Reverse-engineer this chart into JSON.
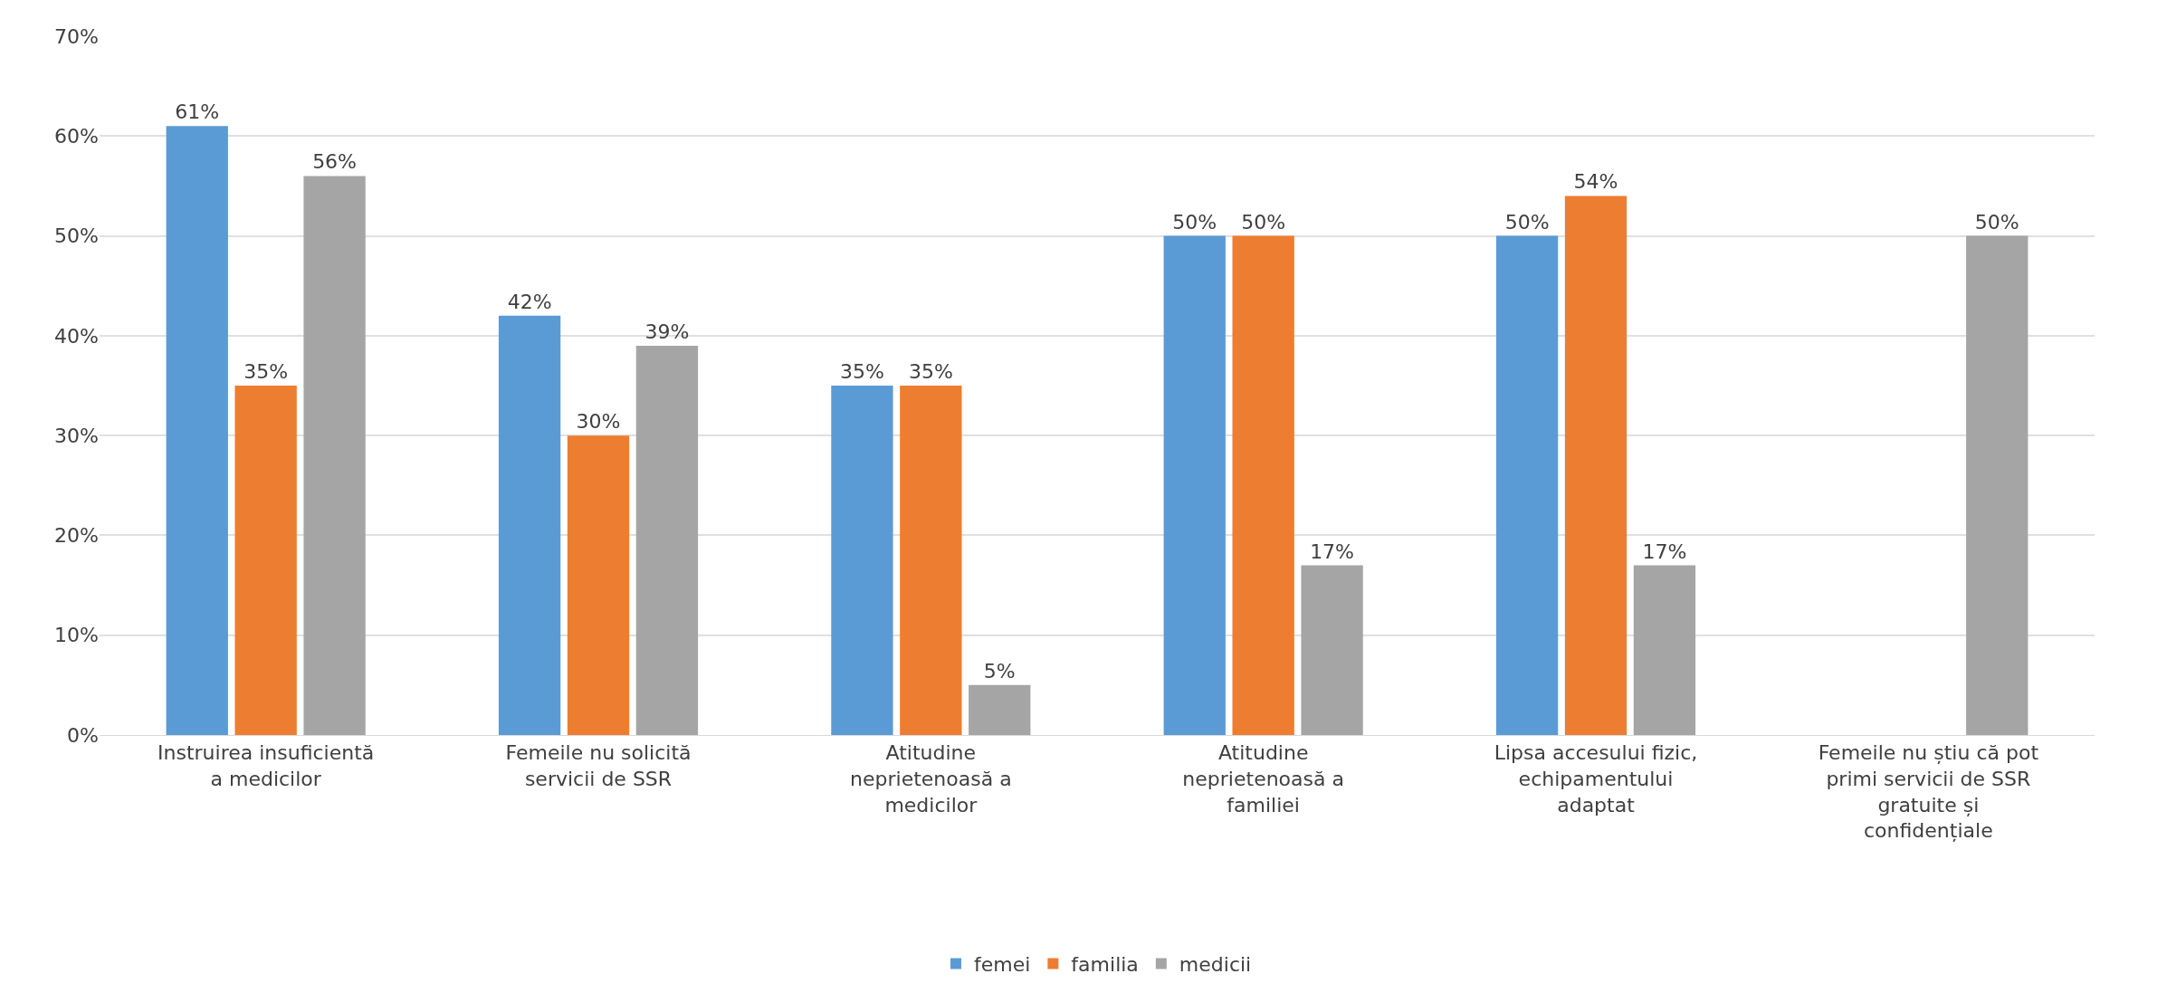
{
  "chart_data": {
    "type": "bar",
    "categories": [
      "Instruirea insuficientă\na medicilor",
      "Femeile nu solicită\nservicii de SSR",
      "Atitudine\nneprietenoasă a\nmedicilor",
      "Atitudine\nneprietenoasă a\nfamiliei",
      "Lipsa accesului fizic,\nechipamentului\nadaptat",
      "Femeile nu știu că pot\nprimi servicii de SSR\ngratuite și\nconfidențiale"
    ],
    "series": [
      {
        "name": "femei",
        "color": "#5b9bd5",
        "values": [
          61,
          42,
          35,
          50,
          50,
          null
        ],
        "value_labels": [
          "61%",
          "42%",
          "35%",
          "50%",
          "50%",
          null
        ]
      },
      {
        "name": "familia",
        "color": "#ed7d31",
        "values": [
          35,
          30,
          35,
          50,
          54,
          null
        ],
        "value_labels": [
          "35%",
          "30%",
          "35%",
          "50%",
          "54%",
          null
        ]
      },
      {
        "name": "medicii",
        "color": "#a5a5a5",
        "values": [
          56,
          39,
          5,
          17,
          17,
          50
        ],
        "value_labels": [
          "56%",
          "39%",
          "5%",
          "17%",
          "17%",
          "50%"
        ]
      }
    ],
    "ylim": [
      0,
      70
    ],
    "yticks": [
      {
        "value": 0,
        "label": "0%"
      },
      {
        "value": 10,
        "label": "10%"
      },
      {
        "value": 20,
        "label": "20%"
      },
      {
        "value": 30,
        "label": "30%"
      },
      {
        "value": 40,
        "label": "40%"
      },
      {
        "value": 50,
        "label": "50%"
      },
      {
        "value": 60,
        "label": "60%"
      },
      {
        "value": 70,
        "label": "70%"
      }
    ],
    "grid": "y",
    "legend": "bottom"
  }
}
